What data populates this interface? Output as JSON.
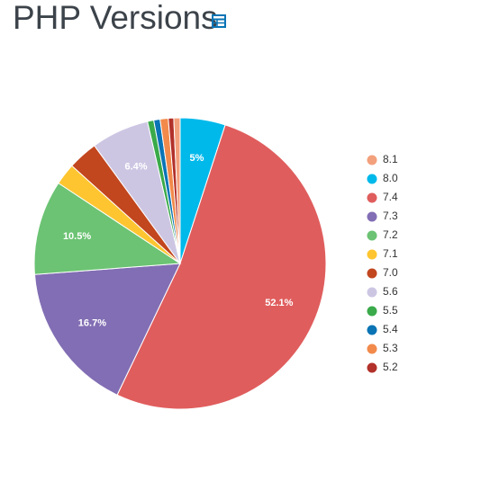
{
  "chart_data": {
    "type": "pie",
    "title": "PHP Versions",
    "categories": [
      "8.1",
      "8.0",
      "7.4",
      "7.3",
      "7.2",
      "7.1",
      "7.0",
      "5.6",
      "5.5",
      "5.4",
      "5.3",
      "5.2"
    ],
    "values": [
      0.7,
      5,
      52.1,
      16.7,
      10.5,
      2.4,
      3.3,
      6.4,
      0.7,
      0.7,
      0.9,
      0.6
    ],
    "value_labels": [
      null,
      "5%",
      "52.1%",
      "16.7%",
      "10.5%",
      null,
      null,
      "6.4%",
      null,
      null,
      null,
      null
    ],
    "colors": [
      "#f3a07c",
      "#00b9eb",
      "#e05d5d",
      "#826eb4",
      "#6bc373",
      "#fec530",
      "#c2461e",
      "#cdc6e3",
      "#3aaa4a",
      "#0a74b5",
      "#f28a4b",
      "#b2312a"
    ]
  }
}
